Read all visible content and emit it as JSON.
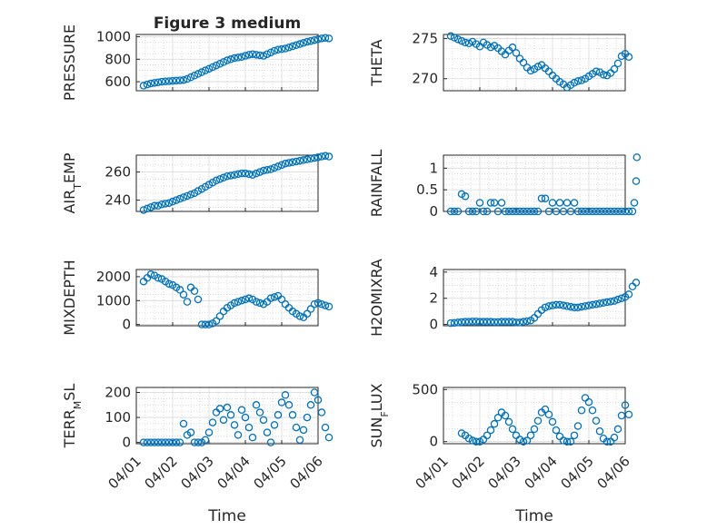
{
  "chart_data": [
    {
      "type": "scatter",
      "title": "Figure 3 medium",
      "ylabel": "PRESSURE",
      "xlim": [
        "04/01",
        "04/06"
      ],
      "ylim": [
        520,
        1020
      ],
      "yticks": [
        600,
        800,
        1000
      ],
      "xticks": [
        "04/01",
        "04/02",
        "04/03",
        "04/04",
        "04/05",
        "04/06"
      ],
      "x": [
        0.7,
        0.8,
        0.9,
        1.0,
        1.1,
        1.2,
        1.3,
        1.4,
        1.5,
        1.6,
        1.7,
        1.8,
        1.9,
        2.0,
        2.1,
        2.2,
        2.3,
        2.4,
        2.5,
        2.6,
        2.7,
        2.8,
        2.9,
        3.0,
        3.1,
        3.2,
        3.3,
        3.4,
        3.5,
        3.6,
        3.7,
        3.8,
        3.9,
        4.0,
        4.1,
        4.2,
        4.3,
        4.4,
        4.5,
        4.6,
        4.7,
        4.8,
        4.9,
        5.0,
        5.1,
        5.2,
        5.3,
        5.4,
        5.5,
        5.6,
        5.7,
        5.8
      ],
      "y": [
        565,
        575,
        585,
        590,
        595,
        600,
        603,
        605,
        608,
        610,
        612,
        615,
        625,
        640,
        655,
        670,
        685,
        700,
        715,
        730,
        745,
        760,
        775,
        790,
        800,
        810,
        815,
        820,
        830,
        840,
        845,
        840,
        835,
        830,
        845,
        860,
        875,
        885,
        890,
        895,
        905,
        915,
        925,
        935,
        945,
        955,
        962,
        970,
        978,
        985,
        990,
        985
      ]
    },
    {
      "type": "scatter",
      "ylabel": "THETA",
      "xlim": [
        "04/01",
        "04/06"
      ],
      "ylim": [
        268.5,
        275.5
      ],
      "yticks": [
        270,
        275
      ],
      "x": [
        0.7,
        0.8,
        0.9,
        1.0,
        1.1,
        1.2,
        1.3,
        1.4,
        1.5,
        1.6,
        1.7,
        1.8,
        1.9,
        2.0,
        2.1,
        2.2,
        2.3,
        2.4,
        2.5,
        2.6,
        2.7,
        2.8,
        2.9,
        3.0,
        3.1,
        3.2,
        3.3,
        3.4,
        3.5,
        3.6,
        3.7,
        3.8,
        3.9,
        4.0,
        4.1,
        4.2,
        4.3,
        4.4,
        4.5,
        4.6,
        4.7,
        4.8,
        4.9,
        5.0,
        5.1,
        5.2,
        5.3,
        5.4,
        5.5,
        5.6
      ],
      "y": [
        275.3,
        275.1,
        274.9,
        274.7,
        274.5,
        274.4,
        274.6,
        274.3,
        274.0,
        274.5,
        274.2,
        273.9,
        274.1,
        273.8,
        273.4,
        273.0,
        273.5,
        273.9,
        273.2,
        272.5,
        272.0,
        271.4,
        271.0,
        271.2,
        271.5,
        271.7,
        271.3,
        270.9,
        270.4,
        270.0,
        269.6,
        269.3,
        268.9,
        269.2,
        269.5,
        269.7,
        269.8,
        270.0,
        270.3,
        270.6,
        270.9,
        270.8,
        270.5,
        270.4,
        270.7,
        271.2,
        271.9,
        272.8,
        273.1,
        272.7
      ]
    },
    {
      "type": "scatter",
      "ylabel": "AIR_TEMP",
      "ylim": [
        232,
        272
      ],
      "yticks": [
        240,
        260
      ],
      "x": [
        0.7,
        0.8,
        0.9,
        1.0,
        1.1,
        1.2,
        1.3,
        1.4,
        1.5,
        1.6,
        1.7,
        1.8,
        1.9,
        2.0,
        2.1,
        2.2,
        2.3,
        2.4,
        2.5,
        2.6,
        2.7,
        2.8,
        2.9,
        3.0,
        3.1,
        3.2,
        3.3,
        3.4,
        3.5,
        3.6,
        3.7,
        3.8,
        3.9,
        4.0,
        4.1,
        4.2,
        4.3,
        4.4,
        4.5,
        4.6,
        4.7,
        4.8,
        4.9,
        5.0,
        5.1,
        5.2,
        5.3,
        5.4,
        5.5,
        5.6,
        5.7,
        5.8
      ],
      "y": [
        233,
        234,
        235,
        236,
        236,
        237,
        237.5,
        238,
        239,
        240,
        241,
        242,
        243,
        244,
        245,
        246.5,
        248,
        249.5,
        251,
        252.5,
        254,
        255,
        256,
        257,
        257.5,
        258,
        258.5,
        259,
        259,
        258.5,
        258,
        259,
        260,
        261,
        261.5,
        262,
        263,
        264,
        265,
        266,
        266.5,
        267,
        267.5,
        268,
        268.5,
        269,
        269.5,
        270,
        270.5,
        271,
        271.5,
        271
      ]
    },
    {
      "type": "scatter",
      "ylabel": "RAINFALL",
      "ylim": [
        0,
        1.3
      ],
      "yticks": [
        0,
        0.5,
        1
      ],
      "x": [
        0.7,
        0.8,
        0.9,
        1.0,
        1.1,
        1.2,
        1.3,
        1.4,
        1.5,
        1.6,
        1.7,
        1.8,
        1.9,
        2.0,
        2.1,
        2.2,
        2.3,
        2.4,
        2.5,
        2.6,
        2.7,
        2.8,
        2.9,
        3.0,
        3.1,
        3.2,
        3.3,
        3.4,
        3.5,
        3.6,
        3.7,
        3.8,
        3.9,
        4.0,
        4.1,
        4.2,
        4.3,
        4.4,
        4.5,
        4.6,
        4.7,
        4.8,
        4.9,
        5.0,
        5.1,
        5.2,
        5.3,
        5.4,
        5.5,
        5.6,
        5.7,
        5.75,
        5.8,
        5.82
      ],
      "y": [
        0,
        0,
        0,
        0.4,
        0.35,
        0,
        0,
        0,
        0.2,
        0,
        0,
        0.2,
        0.2,
        0,
        0.2,
        0,
        0,
        0,
        0,
        0,
        0,
        0,
        0,
        0,
        0,
        0.3,
        0.3,
        0,
        0.2,
        0,
        0.2,
        0,
        0.2,
        0,
        0.2,
        0,
        0,
        0,
        0,
        0,
        0,
        0,
        0,
        0,
        0,
        0,
        0,
        0,
        0,
        0,
        0,
        0.2,
        0.7,
        1.25
      ]
    },
    {
      "type": "scatter",
      "ylabel": "MIXDEPTH",
      "ylim": [
        -50,
        2300
      ],
      "yticks": [
        0,
        1000,
        2000
      ],
      "x": [
        0.7,
        0.8,
        0.9,
        1.0,
        1.1,
        1.2,
        1.3,
        1.4,
        1.5,
        1.6,
        1.7,
        1.8,
        1.9,
        2.0,
        2.1,
        2.2,
        2.3,
        2.4,
        2.5,
        2.6,
        2.7,
        2.8,
        2.9,
        3.0,
        3.1,
        3.2,
        3.3,
        3.4,
        3.5,
        3.6,
        3.7,
        3.8,
        3.9,
        4.0,
        4.1,
        4.2,
        4.3,
        4.4,
        4.5,
        4.6,
        4.7,
        4.8,
        4.9,
        5.0,
        5.1,
        5.2,
        5.3,
        5.4,
        5.5,
        5.6,
        5.7,
        5.8
      ],
      "y": [
        1800,
        1950,
        2100,
        2050,
        1950,
        1900,
        1800,
        1700,
        1650,
        1550,
        1450,
        1250,
        950,
        1550,
        1400,
        1050,
        0,
        0,
        0,
        50,
        150,
        350,
        550,
        700,
        800,
        900,
        950,
        1000,
        1050,
        1100,
        1050,
        950,
        900,
        850,
        950,
        1100,
        1150,
        1200,
        1050,
        850,
        700,
        550,
        450,
        350,
        300,
        450,
        650,
        850,
        900,
        850,
        800,
        750
      ]
    },
    {
      "type": "scatter",
      "ylabel": "H2OMIXRA",
      "ylim": [
        -0.1,
        4.2
      ],
      "yticks": [
        0,
        2,
        4
      ],
      "x": [
        0.7,
        0.8,
        0.9,
        1.0,
        1.1,
        1.2,
        1.3,
        1.4,
        1.5,
        1.6,
        1.7,
        1.8,
        1.9,
        2.0,
        2.1,
        2.2,
        2.3,
        2.4,
        2.5,
        2.6,
        2.7,
        2.8,
        2.9,
        3.0,
        3.1,
        3.2,
        3.3,
        3.4,
        3.5,
        3.6,
        3.7,
        3.8,
        3.9,
        4.0,
        4.1,
        4.2,
        4.3,
        4.4,
        4.5,
        4.6,
        4.7,
        4.8,
        4.9,
        5.0,
        5.1,
        5.2,
        5.3,
        5.4,
        5.5,
        5.6,
        5.7,
        5.8
      ],
      "y": [
        0.1,
        0.12,
        0.15,
        0.18,
        0.2,
        0.2,
        0.22,
        0.22,
        0.2,
        0.2,
        0.2,
        0.2,
        0.18,
        0.18,
        0.2,
        0.2,
        0.2,
        0.2,
        0.15,
        0.15,
        0.2,
        0.25,
        0.3,
        0.5,
        0.8,
        1.1,
        1.3,
        1.4,
        1.45,
        1.5,
        1.5,
        1.45,
        1.4,
        1.35,
        1.3,
        1.3,
        1.35,
        1.4,
        1.45,
        1.5,
        1.55,
        1.6,
        1.65,
        1.7,
        1.75,
        1.8,
        1.9,
        2.0,
        2.1,
        2.3,
        2.9,
        3.2
      ]
    },
    {
      "type": "scatter",
      "ylabel": "TERR_MSL",
      "ylim": [
        -5,
        220
      ],
      "yticks": [
        0,
        100,
        200
      ],
      "x": [
        0.7,
        0.8,
        0.9,
        1.0,
        1.1,
        1.2,
        1.3,
        1.4,
        1.5,
        1.6,
        1.7,
        1.8,
        1.9,
        2.0,
        2.1,
        2.2,
        2.3,
        2.4,
        2.5,
        2.6,
        2.7,
        2.8,
        2.9,
        3.0,
        3.1,
        3.2,
        3.3,
        3.4,
        3.5,
        3.6,
        3.7,
        3.8,
        3.9,
        4.0,
        4.1,
        4.2,
        4.3,
        4.4,
        4.5,
        4.6,
        4.7,
        4.8,
        4.9,
        5.0,
        5.1,
        5.2,
        5.3,
        5.4,
        5.5,
        5.6,
        5.7,
        5.8
      ],
      "y": [
        0,
        0,
        0,
        0,
        0,
        0,
        0,
        0,
        0,
        0,
        0,
        75,
        30,
        40,
        0,
        0,
        0,
        10,
        40,
        80,
        120,
        135,
        90,
        140,
        110,
        70,
        30,
        130,
        100,
        60,
        20,
        150,
        120,
        90,
        40,
        0,
        70,
        110,
        160,
        190,
        150,
        110,
        60,
        10,
        50,
        100,
        150,
        200,
        170,
        120,
        60,
        20
      ]
    },
    {
      "type": "scatter",
      "ylabel": "SUN_FLUX",
      "ylim": [
        -20,
        520
      ],
      "yticks": [
        0,
        500
      ],
      "x": [
        1.0,
        1.1,
        1.2,
        1.3,
        1.4,
        1.5,
        1.6,
        1.7,
        1.8,
        1.9,
        2.0,
        2.1,
        2.2,
        2.3,
        2.4,
        2.5,
        2.6,
        2.7,
        2.8,
        2.9,
        3.0,
        3.1,
        3.2,
        3.3,
        3.4,
        3.5,
        3.6,
        3.7,
        3.8,
        3.9,
        4.0,
        4.1,
        4.2,
        4.3,
        4.4,
        4.5,
        4.6,
        4.7,
        4.8,
        4.9,
        5.0,
        5.1,
        5.2,
        5.3,
        5.4,
        5.5,
        5.6
      ],
      "y": [
        80,
        60,
        30,
        10,
        0,
        0,
        20,
        60,
        110,
        170,
        230,
        280,
        250,
        190,
        120,
        60,
        20,
        0,
        10,
        60,
        120,
        200,
        280,
        310,
        260,
        190,
        110,
        50,
        10,
        0,
        0,
        60,
        150,
        300,
        420,
        380,
        300,
        200,
        100,
        30,
        0,
        0,
        40,
        120,
        250,
        350,
        260
      ]
    }
  ],
  "xticks": [
    "04/01",
    "04/02",
    "04/03",
    "04/04",
    "04/05",
    "04/06"
  ],
  "xlabel": "Time"
}
